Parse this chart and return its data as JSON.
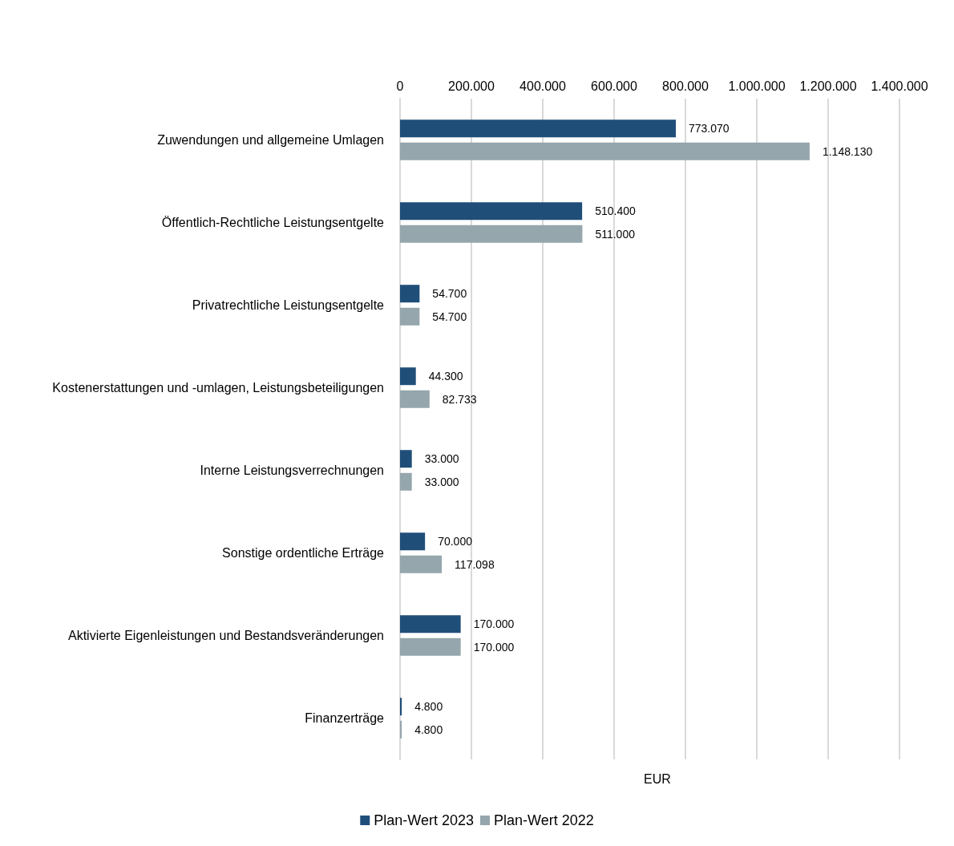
{
  "chart_data": {
    "type": "bar",
    "orientation": "horizontal",
    "xlabel": "EUR",
    "categories": [
      "Zuwendungen und allgemeine Umlagen",
      "Öffentlich-Rechtliche Leistungsentgelte",
      "Privatrechtliche Leistungsentgelte",
      "Kostenerstattungen und -umlagen, Leistungsbeteiligungen",
      "Interne Leistungsverrechnungen",
      "Sonstige ordentliche Erträge",
      "Aktivierte Eigenleistungen und Bestandsveränderungen",
      "Finanzerträge"
    ],
    "series": [
      {
        "name": "Plan-Wert 2023",
        "color": "#1f4e79",
        "values": [
          773070,
          510400,
          54700,
          44300,
          33000,
          70000,
          170000,
          4800
        ],
        "value_labels": [
          "773.070",
          "510.400",
          "54.700",
          "44.300",
          "33.000",
          "70.000",
          "170.000",
          "4.800"
        ]
      },
      {
        "name": "Plan-Wert 2022",
        "color": "#95a6ad",
        "values": [
          1148130,
          511000,
          54700,
          82733,
          33000,
          117098,
          170000,
          4800
        ],
        "value_labels": [
          "1.148.130",
          "511.000",
          "54.700",
          "82.733",
          "33.000",
          "117.098",
          "170.000",
          "4.800"
        ]
      }
    ],
    "xlim": [
      0,
      1400000
    ],
    "xticks": [
      0,
      {
        "value": 200000,
        "label": "200.000"
      },
      {
        "value": 400000,
        "label": "400.000"
      },
      {
        "value": 600000,
        "label": "600.000"
      },
      {
        "value": 800000,
        "label": "800.000"
      },
      {
        "value": 1000000,
        "label": "1.000.000"
      },
      {
        "value": 1200000,
        "label": "1.200.000"
      },
      {
        "value": 1400000,
        "label": "1.400.000"
      }
    ],
    "grid": "x",
    "legend": "bottom"
  }
}
